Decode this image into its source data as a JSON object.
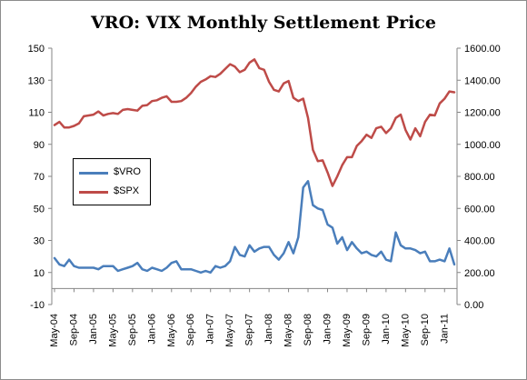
{
  "chart_data": {
    "type": "line",
    "title": "VRO: VIX Monthly Settlement Price",
    "x": [
      "May-04",
      "Jun-04",
      "Jul-04",
      "Aug-04",
      "Sep-04",
      "Oct-04",
      "Nov-04",
      "Dec-04",
      "Jan-05",
      "Feb-05",
      "Mar-05",
      "Apr-05",
      "May-05",
      "Jun-05",
      "Jul-05",
      "Aug-05",
      "Sep-05",
      "Oct-05",
      "Nov-05",
      "Dec-05",
      "Jan-06",
      "Feb-06",
      "Mar-06",
      "Apr-06",
      "May-06",
      "Jun-06",
      "Jul-06",
      "Aug-06",
      "Sep-06",
      "Oct-06",
      "Nov-06",
      "Dec-06",
      "Jan-07",
      "Feb-07",
      "Mar-07",
      "Apr-07",
      "May-07",
      "Jun-07",
      "Jul-07",
      "Aug-07",
      "Sep-07",
      "Oct-07",
      "Nov-07",
      "Dec-07",
      "Jan-08",
      "Feb-08",
      "Mar-08",
      "Apr-08",
      "May-08",
      "Jun-08",
      "Jul-08",
      "Aug-08",
      "Sep-08",
      "Oct-08",
      "Nov-08",
      "Dec-08",
      "Jan-09",
      "Feb-09",
      "Mar-09",
      "Apr-09",
      "May-09",
      "Jun-09",
      "Jul-09",
      "Aug-09",
      "Sep-09",
      "Oct-09",
      "Nov-09",
      "Dec-09",
      "Jan-10",
      "Feb-10",
      "Mar-10",
      "Apr-10",
      "May-10",
      "Jun-10",
      "Jul-10",
      "Aug-10",
      "Sep-10",
      "Oct-10",
      "Nov-10",
      "Dec-10",
      "Jan-11",
      "Feb-11",
      "Mar-11"
    ],
    "x_tick_labels": [
      "May-04",
      "Sep-04",
      "Jan-05",
      "May-05",
      "Sep-05",
      "Jan-06",
      "May-06",
      "Sep-06",
      "Jan-07",
      "May-07",
      "Sep-07",
      "Jan-08",
      "May-08",
      "Sep-08",
      "Jan-09",
      "May-09",
      "Sep-09",
      "Jan-10",
      "May-10",
      "Sep-10",
      "Jan-11"
    ],
    "series": [
      {
        "name": "$VRO",
        "axis": "left",
        "color": "#4a7ebb",
        "values": [
          19,
          15,
          14,
          18,
          14,
          13,
          13,
          13,
          13,
          12,
          14,
          14,
          14,
          11,
          12,
          13,
          14,
          16,
          12,
          11,
          13,
          12,
          11,
          13,
          16,
          17,
          12,
          12,
          12,
          11,
          10,
          11,
          10,
          14,
          13,
          14,
          17,
          26,
          21,
          20,
          27,
          23,
          25,
          26,
          26,
          21,
          18,
          22,
          29,
          22,
          32,
          63,
          67,
          52,
          50,
          49,
          40,
          38,
          28,
          32,
          24,
          29,
          25,
          22,
          23,
          21,
          20,
          23,
          18,
          17,
          35,
          27,
          25,
          25,
          24,
          22,
          23,
          17,
          17,
          18,
          17,
          25,
          15
        ]
      },
      {
        "name": "$SPX",
        "axis": "right",
        "color": "#be4b48",
        "values": [
          1120,
          1140,
          1105,
          1105,
          1115,
          1130,
          1175,
          1180,
          1185,
          1205,
          1180,
          1190,
          1195,
          1190,
          1215,
          1220,
          1215,
          1210,
          1240,
          1245,
          1270,
          1275,
          1290,
          1300,
          1265,
          1265,
          1270,
          1290,
          1320,
          1360,
          1390,
          1405,
          1425,
          1420,
          1440,
          1470,
          1500,
          1485,
          1450,
          1465,
          1510,
          1530,
          1475,
          1465,
          1390,
          1340,
          1330,
          1380,
          1395,
          1290,
          1270,
          1285,
          1165,
          965,
          895,
          900,
          825,
          740,
          800,
          870,
          920,
          920,
          990,
          1020,
          1060,
          1040,
          1100,
          1110,
          1070,
          1100,
          1165,
          1185,
          1090,
          1030,
          1100,
          1050,
          1140,
          1185,
          1180,
          1255,
          1285,
          1330,
          1325
        ]
      }
    ],
    "y_left": {
      "min": -10,
      "max": 150,
      "ticks": [
        "-10",
        "10",
        "30",
        "50",
        "70",
        "90",
        "110",
        "130",
        "150"
      ]
    },
    "y_right": {
      "min": 0,
      "max": 1600,
      "ticks": [
        "0.00",
        "200.00",
        "400.00",
        "600.00",
        "800.00",
        "1000.00",
        "1200.00",
        "1400.00",
        "1600.00"
      ]
    },
    "legend_position": "left-middle",
    "grid": false
  }
}
